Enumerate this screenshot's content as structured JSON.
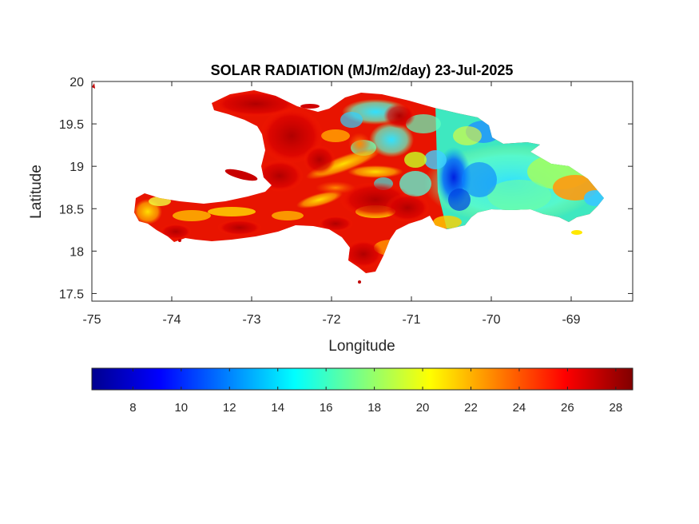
{
  "title": "SOLAR RADIATION (MJ/m2/day) 23-Jul-2025",
  "axes": {
    "xlabel": "Longitude",
    "ylabel": "Latitude",
    "x_ticks": [
      "-75",
      "-74",
      "-73",
      "-72",
      "-71",
      "-70",
      "-69"
    ],
    "y_ticks": [
      "20",
      "19.5",
      "19",
      "18.5",
      "18",
      "17.5"
    ],
    "xlim": [
      -75,
      -68.23
    ],
    "ylim": [
      17.41,
      20
    ]
  },
  "colorbar": {
    "colormap": "jet",
    "ticks": [
      "8",
      "10",
      "12",
      "14",
      "16",
      "18",
      "20",
      "22",
      "24",
      "26",
      "28"
    ],
    "range": [
      6.3,
      28.7
    ]
  },
  "map_data": {
    "region": "Hispaniola (Haiti and Dominican Republic)",
    "variable": "solar radiation",
    "units": "MJ/m2/day",
    "date": "23-Jul-2025"
  }
}
